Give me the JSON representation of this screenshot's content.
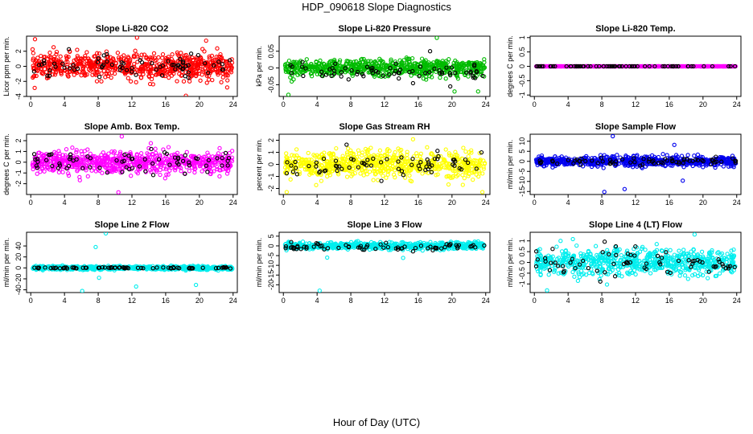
{
  "page_title": "HDP_090618  Slope Diagnostics",
  "x_axis_title": "Hour of Day (UTC)",
  "chart_data": [
    {
      "type": "scatter",
      "title": "Slope Li-820 CO2",
      "ylabel": "Licor ppm per min.",
      "xlim": [
        -0.5,
        24.5
      ],
      "ylim": [
        -4,
        4
      ],
      "xticks": [
        0,
        4,
        8,
        12,
        16,
        20,
        24
      ],
      "yticks": [
        -4,
        -2,
        0,
        2
      ],
      "series": [
        {
          "color": "#ff0000",
          "count": 700,
          "center": 0,
          "spread": 1.5,
          "outliers": [
            [
              0.5,
              3.6
            ],
            [
              12.6,
              3.8
            ],
            [
              18.4,
              -3.9
            ],
            [
              20.8,
              3.4
            ],
            [
              23.3,
              -2.8
            ]
          ]
        },
        {
          "color": "#000000",
          "count": 70,
          "center": 0,
          "spread": 1.3,
          "outliers": []
        }
      ]
    },
    {
      "type": "scatter",
      "title": "Slope Li-820 Pressure",
      "ylabel": "kPa per min.",
      "xlim": [
        -0.5,
        24.5
      ],
      "ylim": [
        -0.085,
        0.095
      ],
      "xticks": [
        0,
        4,
        8,
        12,
        16,
        20,
        24
      ],
      "yticks": [
        -0.05,
        0,
        0.05
      ],
      "series": [
        {
          "color": "#00bb00",
          "count": 700,
          "center": 0.0,
          "spread": 0.022,
          "outliers": [
            [
              0.6,
              -0.08
            ],
            [
              18.2,
              0.09
            ],
            [
              20.3,
              -0.07
            ],
            [
              23.1,
              -0.07
            ]
          ]
        },
        {
          "color": "#000000",
          "count": 70,
          "center": -0.01,
          "spread": 0.022,
          "outliers": [
            [
              17.4,
              0.05
            ],
            [
              19.8,
              -0.055
            ]
          ]
        }
      ]
    },
    {
      "type": "scatter",
      "title": "Slope Li-820 Temp.",
      "ylabel": "degrees C per min.",
      "xlim": [
        -0.5,
        24.5
      ],
      "ylim": [
        -1.05,
        1.05
      ],
      "xticks": [
        0,
        4,
        8,
        12,
        16,
        20,
        24
      ],
      "yticks": [
        -1.0,
        -0.5,
        0.0,
        0.5,
        1.0
      ],
      "series": [
        {
          "color": "#ff00ff",
          "count": 700,
          "center": 0,
          "spread": 0,
          "outliers": []
        },
        {
          "color": "#000000",
          "count": 70,
          "center": 0,
          "spread": 0,
          "outliers": []
        }
      ]
    },
    {
      "type": "scatter",
      "title": "Slope Amb. Box Temp.",
      "ylabel": "degrees C per min.",
      "xlim": [
        -0.5,
        24.5
      ],
      "ylim": [
        -3,
        2.6
      ],
      "xticks": [
        0,
        4,
        8,
        12,
        16,
        20,
        24
      ],
      "yticks": [
        -2,
        -1,
        0,
        1,
        2
      ],
      "series": [
        {
          "color": "#ff00ff",
          "count": 700,
          "center": 0,
          "spread": 0.9,
          "outliers": [
            [
              10.4,
              -2.8
            ],
            [
              10.8,
              2.4
            ]
          ]
        },
        {
          "color": "#000000",
          "count": 70,
          "center": 0,
          "spread": 0.9,
          "outliers": []
        }
      ]
    },
    {
      "type": "scatter",
      "title": "Slope Gas Stream RH",
      "ylabel": "percent per min.",
      "xlim": [
        -0.5,
        24.5
      ],
      "ylim": [
        -2.5,
        2.5
      ],
      "xticks": [
        0,
        4,
        8,
        12,
        16,
        20,
        24
      ],
      "yticks": [
        -2,
        -1,
        0,
        1,
        2
      ],
      "series": [
        {
          "color": "#ffff00",
          "count": 700,
          "center": 0,
          "spread": 1.0,
          "outliers": [
            [
              0.4,
              -2.3
            ],
            [
              23.6,
              -2.3
            ]
          ]
        },
        {
          "color": "#000000",
          "count": 70,
          "center": 0,
          "spread": 0.9,
          "outliers": []
        }
      ]
    },
    {
      "type": "scatter",
      "title": "Slope Sample Flow",
      "ylabel": "ml/min per min.",
      "xlim": [
        -0.5,
        24.5
      ],
      "ylim": [
        -16.5,
        13.5
      ],
      "xticks": [
        0,
        4,
        8,
        12,
        16,
        20,
        24
      ],
      "yticks": [
        -15,
        -10,
        -5,
        0,
        5,
        10
      ],
      "series": [
        {
          "color": "#0000ee",
          "count": 700,
          "center": 0,
          "spread": 2.2,
          "outliers": [
            [
              9.3,
              12.5
            ],
            [
              8.3,
              -15.2
            ],
            [
              17.6,
              -9.6
            ],
            [
              16.6,
              8.2
            ],
            [
              10.7,
              -13.8
            ]
          ]
        },
        {
          "color": "#000000",
          "count": 70,
          "center": 0,
          "spread": 1.5,
          "outliers": []
        }
      ]
    },
    {
      "type": "scatter",
      "title": "Slope Line 2 Flow",
      "ylabel": "ml/min per min.",
      "xlim": [
        -0.5,
        24.5
      ],
      "ylim": [
        -45,
        65
      ],
      "xticks": [
        0,
        4,
        8,
        12,
        16,
        20,
        24
      ],
      "yticks": [
        -40,
        -20,
        0,
        20,
        40
      ],
      "series": [
        {
          "color": "#00eeee",
          "count": 700,
          "center": 0,
          "spread": 3,
          "outliers": [
            [
              8.9,
              63
            ],
            [
              7.7,
              38
            ],
            [
              12.5,
              -34
            ],
            [
              6.1,
              -42
            ],
            [
              19.6,
              -31
            ],
            [
              8.1,
              -18
            ]
          ]
        },
        {
          "color": "#000000",
          "count": 70,
          "center": 0,
          "spread": 1,
          "outliers": []
        }
      ]
    },
    {
      "type": "scatter",
      "title": "Slope Line 3 Flow",
      "ylabel": "ml/min per min.",
      "xlim": [
        -0.5,
        24.5
      ],
      "ylim": [
        -24,
        7
      ],
      "xticks": [
        0,
        4,
        8,
        12,
        16,
        20,
        24
      ],
      "yticks": [
        -20,
        -15,
        -10,
        -5,
        0,
        5
      ],
      "series": [
        {
          "color": "#00eeee",
          "count": 700,
          "center": 0,
          "spread": 1.6,
          "outliers": [
            [
              4.3,
              -23
            ],
            [
              5.2,
              -6
            ],
            [
              14.2,
              -6.2
            ]
          ]
        },
        {
          "color": "#000000",
          "count": 70,
          "center": -0.5,
          "spread": 1.5,
          "outliers": []
        }
      ]
    },
    {
      "type": "scatter",
      "title": "Slope Line 4 (LT) Flow",
      "ylabel": "ml/min per min.",
      "xlim": [
        -0.5,
        24.5
      ],
      "ylim": [
        -1.4,
        1.4
      ],
      "xticks": [
        0,
        4,
        8,
        12,
        16,
        20,
        24
      ],
      "yticks": [
        -1.0,
        -0.5,
        0.0,
        0.5,
        1.0
      ],
      "series": [
        {
          "color": "#00eeee",
          "count": 700,
          "center": 0,
          "spread": 0.55,
          "outliers": [
            [
              1.5,
              -1.3
            ],
            [
              19.0,
              1.3
            ]
          ]
        },
        {
          "color": "#000000",
          "count": 70,
          "center": 0,
          "spread": 0.55,
          "outliers": []
        }
      ]
    }
  ]
}
